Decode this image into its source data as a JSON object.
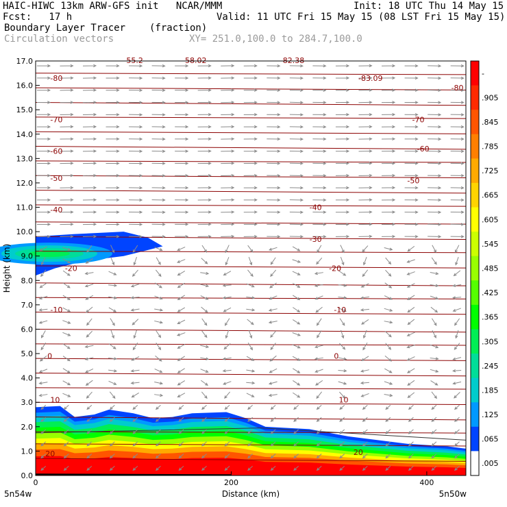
{
  "header": {
    "line1_left": "HAIC-HIWC 13km ARW-GFS init   NCAR/MMM",
    "line1_right": "Init: 18 UTC Thu 14 May 15",
    "line2_left": "Fcst:   17 h",
    "line2_right": "Valid: 11 UTC Fri 15 May 15 (08 LST Fri 15 May 15)",
    "line3_left": "Boundary Layer Tracer",
    "line3_units": "(fraction)",
    "line4_left": "Circulation vectors",
    "line4_right": "XY= 251.0,100.0 to 284.7,100.0"
  },
  "chart_data": {
    "type": "heatmap",
    "xlabel": "Distance (km)",
    "ylabel": "Height (km)",
    "xlim": [
      0,
      440
    ],
    "ylim": [
      0,
      17
    ],
    "x_ticks": [
      0,
      200,
      400
    ],
    "y_ticks": [
      "0.0",
      "1.0",
      "2.0",
      "3.0",
      "4.0",
      "5.0",
      "6.0",
      "7.0",
      "8.0",
      "9.0",
      "10.0",
      "11.0",
      "12.0",
      "13.0",
      "14.0",
      "15.0",
      "16.0",
      "17.0"
    ],
    "x_end_labels": {
      "left": "5n54w",
      "right": "5n50w"
    },
    "colorbar_labels": [
      "-",
      ".905",
      ".845",
      ".785",
      ".725",
      ".665",
      ".605",
      ".545",
      ".485",
      ".425",
      ".365",
      ".305",
      ".245",
      ".185",
      ".125",
      ".065",
      ".005"
    ],
    "colorbar_colors": [
      "#ff0000",
      "#ff2a00",
      "#ff5500",
      "#ff7f00",
      "#ffaa00",
      "#ffd400",
      "#ffff00",
      "#ccff00",
      "#99ff00",
      "#55ff00",
      "#00ff00",
      "#00ee55",
      "#00dd99",
      "#00cccc",
      "#0099ff",
      "#0044ff",
      "#ffffff"
    ],
    "temperature_contour_labels": [
      {
        "text": "-80",
        "x": 15,
        "y": 16.3
      },
      {
        "text": "-83.09",
        "x": 330,
        "y": 16.3
      },
      {
        "text": "-80",
        "x": 425,
        "y": 15.9
      },
      {
        "text": "-70",
        "x": 15,
        "y": 14.6
      },
      {
        "text": "-70",
        "x": 385,
        "y": 14.6
      },
      {
        "text": "-60",
        "x": 15,
        "y": 13.3
      },
      {
        "text": "-60",
        "x": 390,
        "y": 13.4
      },
      {
        "text": "-50",
        "x": 15,
        "y": 12.2
      },
      {
        "text": "-50",
        "x": 380,
        "y": 12.1
      },
      {
        "text": "-40",
        "x": 15,
        "y": 10.9
      },
      {
        "text": "-40",
        "x": 280,
        "y": 11.0
      },
      {
        "text": "-30",
        "x": 280,
        "y": 9.7
      },
      {
        "text": "-20",
        "x": 30,
        "y": 8.5
      },
      {
        "text": "-20",
        "x": 300,
        "y": 8.5
      },
      {
        "text": "-10",
        "x": 15,
        "y": 6.8
      },
      {
        "text": "-10",
        "x": 305,
        "y": 6.8
      },
      {
        "text": "0",
        "x": 12,
        "y": 4.9
      },
      {
        "text": "0",
        "x": 305,
        "y": 4.9
      },
      {
        "text": "10",
        "x": 15,
        "y": 3.1
      },
      {
        "text": "10",
        "x": 310,
        "y": 3.1
      },
      {
        "text": "20",
        "x": 10,
        "y": 0.9
      },
      {
        "text": "20",
        "x": 325,
        "y": 0.95
      }
    ],
    "top_partial_labels": [
      {
        "text": "-55.2",
        "x": 90
      },
      {
        "text": "-58.02",
        "x": 150
      },
      {
        "text": "-82.38",
        "x": 250
      }
    ],
    "tracer_upper_plume": [
      [
        0,
        8.2
      ],
      [
        20,
        8.5
      ],
      [
        50,
        8.8
      ],
      [
        90,
        9.0
      ],
      [
        130,
        9.4
      ],
      [
        115,
        9.75
      ],
      [
        90,
        10.0
      ],
      [
        40,
        9.9
      ],
      [
        0,
        9.8
      ]
    ],
    "tracer_boundary_layer_top": [
      [
        0,
        2.8
      ],
      [
        25,
        2.85
      ],
      [
        40,
        2.4
      ],
      [
        60,
        2.5
      ],
      [
        75,
        2.7
      ],
      [
        100,
        2.55
      ],
      [
        120,
        2.35
      ],
      [
        140,
        2.4
      ],
      [
        160,
        2.55
      ],
      [
        195,
        2.6
      ],
      [
        215,
        2.35
      ],
      [
        235,
        2.0
      ],
      [
        280,
        1.9
      ],
      [
        320,
        1.6
      ],
      [
        380,
        1.3
      ],
      [
        420,
        1.2
      ],
      [
        440,
        1.1
      ]
    ],
    "temperature_contour_heights": [
      16.5,
      15.9,
      15.3,
      14.7,
      14.1,
      13.5,
      12.9,
      12.3,
      11.7,
      11.1,
      10.4,
      9.8,
      9.2,
      8.6,
      7.9,
      7.3,
      6.7,
      6.0,
      5.4,
      4.8,
      4.2,
      3.6,
      3.0,
      2.4,
      1.8,
      1.3,
      0.7
    ]
  }
}
